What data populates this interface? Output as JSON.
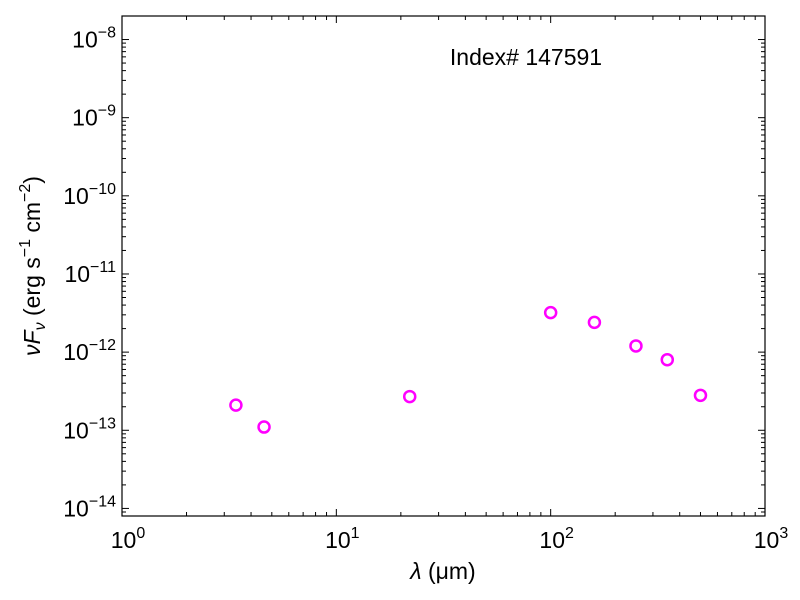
{
  "chart_data": {
    "type": "scatter",
    "xscale": "log",
    "yscale": "log",
    "xlim": [
      1,
      1000
    ],
    "ylim": [
      8e-15,
      2e-08
    ],
    "xlabel_sym": "λ",
    "xlabel_unit": "(μm)",
    "ylabel": "νF_ν (erg s⁻¹ cm⁻²)",
    "ylabel_nu": "ν",
    "ylabel_F": "F",
    "ylabel_sub": "ν",
    "ylabel_units_a": "(erg s",
    "ylabel_units_exp1": "−1",
    "ylabel_units_b": " cm",
    "ylabel_units_exp2": "−2",
    "ylabel_units_c": ")",
    "annotation": "Index# 147591",
    "x_ticks": [
      {
        "value": 1,
        "base": "10",
        "exp": "0"
      },
      {
        "value": 10,
        "base": "10",
        "exp": "1"
      },
      {
        "value": 100,
        "base": "10",
        "exp": "2"
      },
      {
        "value": 1000,
        "base": "10",
        "exp": "3"
      }
    ],
    "y_ticks": [
      {
        "value": 1e-14,
        "base": "10",
        "exp": "−14"
      },
      {
        "value": 1e-13,
        "base": "10",
        "exp": "−13"
      },
      {
        "value": 1e-12,
        "base": "10",
        "exp": "−12"
      },
      {
        "value": 1e-11,
        "base": "10",
        "exp": "−11"
      },
      {
        "value": 1e-10,
        "base": "10",
        "exp": "−10"
      },
      {
        "value": 1e-09,
        "base": "10",
        "exp": "−9"
      },
      {
        "value": 1e-08,
        "base": "10",
        "exp": "−8"
      }
    ],
    "series": [
      {
        "marker": "open-circle",
        "color": "#ff00ff",
        "points": [
          {
            "x": 3.4,
            "y": 2.1e-13
          },
          {
            "x": 4.6,
            "y": 1.1e-13
          },
          {
            "x": 22,
            "y": 2.7e-13
          },
          {
            "x": 100,
            "y": 3.2e-12
          },
          {
            "x": 160,
            "y": 2.4e-12
          },
          {
            "x": 250,
            "y": 1.2e-12
          },
          {
            "x": 350,
            "y": 8e-13
          },
          {
            "x": 500,
            "y": 2.8e-13
          }
        ]
      }
    ],
    "grid": false
  }
}
